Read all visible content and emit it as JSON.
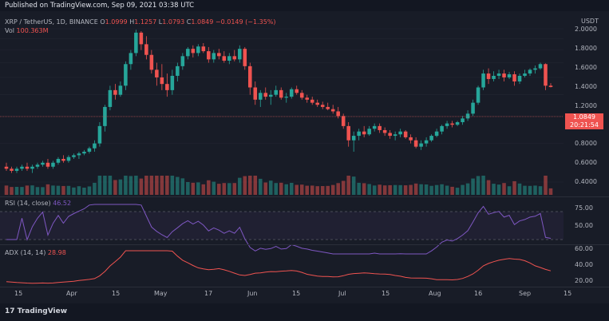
{
  "header": {
    "published": "Published on TradingView.com, Sep 09, 2021 03:38 UTC"
  },
  "legend": {
    "symbol": "XRP / TetherUS, 1D, BINANCE",
    "o_label": "O",
    "o": "1.0999",
    "h_label": "H",
    "h": "1.1257",
    "l_label": "L",
    "l": "1.0793",
    "c_label": "C",
    "c": "1.0849",
    "change": "−0.0149 (−1.35%)",
    "vol_label": "Vol",
    "vol": "100.363M"
  },
  "price_axis": {
    "currency": "USDT",
    "ticks": [
      "2.0000",
      "1.8000",
      "1.6000",
      "1.4000",
      "1.2000",
      "0.8000",
      "0.6000",
      "0.4000"
    ],
    "last_price": "1.0849",
    "countdown": "20:21:54"
  },
  "rsi": {
    "label": "RSI (14, close)",
    "value": "46.52",
    "ticks": [
      "75.00",
      "50.00"
    ]
  },
  "adx": {
    "label": "ADX (14, 14)",
    "value": "28.98",
    "ticks": [
      "60.00",
      "40.00",
      "20.00"
    ]
  },
  "time_axis": [
    "15",
    "Apr",
    "15",
    "May",
    "17",
    "Jun",
    "15",
    "Jul",
    "15",
    "Aug",
    "16",
    "Sep",
    "15"
  ],
  "footer": {
    "brand": "TradingView"
  },
  "colors": {
    "up": "#26a69a",
    "down": "#ef5350",
    "rsi": "#7e57c2",
    "adx": "#ef5350",
    "bg": "#181c27"
  },
  "chart_data": {
    "type": "candlestick",
    "symbol": "XRP / TetherUS",
    "ylim": [
      0.3,
      2.05
    ],
    "candles": [
      [
        0.47,
        0.49,
        0.45,
        0.46
      ],
      [
        0.46,
        0.47,
        0.44,
        0.45
      ],
      [
        0.45,
        0.47,
        0.44,
        0.46
      ],
      [
        0.46,
        0.48,
        0.45,
        0.47
      ],
      [
        0.47,
        0.49,
        0.45,
        0.46
      ],
      [
        0.46,
        0.48,
        0.44,
        0.47
      ],
      [
        0.47,
        0.49,
        0.46,
        0.48
      ],
      [
        0.48,
        0.5,
        0.47,
        0.49
      ],
      [
        0.49,
        0.51,
        0.46,
        0.47
      ],
      [
        0.47,
        0.5,
        0.46,
        0.49
      ],
      [
        0.49,
        0.52,
        0.48,
        0.51
      ],
      [
        0.51,
        0.53,
        0.49,
        0.5
      ],
      [
        0.5,
        0.53,
        0.49,
        0.52
      ],
      [
        0.52,
        0.54,
        0.51,
        0.53
      ],
      [
        0.53,
        0.55,
        0.51,
        0.54
      ],
      [
        0.54,
        0.56,
        0.53,
        0.55
      ],
      [
        0.55,
        0.58,
        0.54,
        0.57
      ],
      [
        0.57,
        0.62,
        0.55,
        0.6
      ],
      [
        0.6,
        0.75,
        0.58,
        0.72
      ],
      [
        0.72,
        0.9,
        0.68,
        0.88
      ],
      [
        0.88,
        1.1,
        0.85,
        1.05
      ],
      [
        1.05,
        1.12,
        0.95,
        1.0
      ],
      [
        1.0,
        1.15,
        0.98,
        1.1
      ],
      [
        1.1,
        1.42,
        1.05,
        1.38
      ],
      [
        1.38,
        1.6,
        1.3,
        1.55
      ],
      [
        1.55,
        1.98,
        1.5,
        1.92
      ],
      [
        1.92,
        1.95,
        1.6,
        1.7
      ],
      [
        1.7,
        1.85,
        1.45,
        1.52
      ],
      [
        1.52,
        1.6,
        1.25,
        1.3
      ],
      [
        1.3,
        1.4,
        1.1,
        1.2
      ],
      [
        1.2,
        1.38,
        1.05,
        1.12
      ],
      [
        1.12,
        1.25,
        0.98,
        1.05
      ],
      [
        1.05,
        1.3,
        1.0,
        1.22
      ],
      [
        1.22,
        1.4,
        1.15,
        1.35
      ],
      [
        1.35,
        1.55,
        1.3,
        1.5
      ],
      [
        1.5,
        1.65,
        1.45,
        1.62
      ],
      [
        1.62,
        1.68,
        1.48,
        1.55
      ],
      [
        1.55,
        1.7,
        1.5,
        1.66
      ],
      [
        1.66,
        1.72,
        1.55,
        1.58
      ],
      [
        1.58,
        1.65,
        1.4,
        1.45
      ],
      [
        1.45,
        1.6,
        1.4,
        1.55
      ],
      [
        1.55,
        1.62,
        1.45,
        1.5
      ],
      [
        1.5,
        1.58,
        1.4,
        1.43
      ],
      [
        1.43,
        1.55,
        1.38,
        1.5
      ],
      [
        1.5,
        1.6,
        1.42,
        1.45
      ],
      [
        1.45,
        1.68,
        1.4,
        1.62
      ],
      [
        1.62,
        1.65,
        1.3,
        1.35
      ],
      [
        1.35,
        1.4,
        1.0,
        1.08
      ],
      [
        1.08,
        1.15,
        0.9,
        0.95
      ],
      [
        0.95,
        1.05,
        0.88,
        1.02
      ],
      [
        1.02,
        1.08,
        0.95,
        0.98
      ],
      [
        0.98,
        1.05,
        0.9,
        1.0
      ],
      [
        1.0,
        1.1,
        0.98,
        1.05
      ],
      [
        1.05,
        1.08,
        0.95,
        0.97
      ],
      [
        0.97,
        1.02,
        0.92,
        0.98
      ],
      [
        0.98,
        1.08,
        0.96,
        1.06
      ],
      [
        1.06,
        1.1,
        1.0,
        1.02
      ],
      [
        1.02,
        1.05,
        0.95,
        0.97
      ],
      [
        0.97,
        1.0,
        0.92,
        0.95
      ],
      [
        0.95,
        0.98,
        0.9,
        0.92
      ],
      [
        0.92,
        0.95,
        0.88,
        0.9
      ],
      [
        0.9,
        0.93,
        0.86,
        0.88
      ],
      [
        0.88,
        0.92,
        0.85,
        0.86
      ],
      [
        0.86,
        0.9,
        0.82,
        0.84
      ],
      [
        0.84,
        0.88,
        0.78,
        0.8
      ],
      [
        0.8,
        0.82,
        0.7,
        0.72
      ],
      [
        0.72,
        0.75,
        0.58,
        0.62
      ],
      [
        0.62,
        0.68,
        0.55,
        0.65
      ],
      [
        0.65,
        0.7,
        0.62,
        0.68
      ],
      [
        0.68,
        0.72,
        0.64,
        0.66
      ],
      [
        0.66,
        0.72,
        0.65,
        0.7
      ],
      [
        0.7,
        0.74,
        0.68,
        0.72
      ],
      [
        0.72,
        0.74,
        0.67,
        0.69
      ],
      [
        0.69,
        0.71,
        0.65,
        0.67
      ],
      [
        0.67,
        0.69,
        0.63,
        0.65
      ],
      [
        0.65,
        0.68,
        0.62,
        0.66
      ],
      [
        0.66,
        0.7,
        0.64,
        0.68
      ],
      [
        0.68,
        0.69,
        0.63,
        0.64
      ],
      [
        0.64,
        0.66,
        0.6,
        0.62
      ],
      [
        0.62,
        0.64,
        0.57,
        0.58
      ],
      [
        0.58,
        0.62,
        0.56,
        0.6
      ],
      [
        0.6,
        0.64,
        0.58,
        0.62
      ],
      [
        0.62,
        0.66,
        0.61,
        0.65
      ],
      [
        0.65,
        0.7,
        0.64,
        0.68
      ],
      [
        0.68,
        0.73,
        0.66,
        0.72
      ],
      [
        0.72,
        0.76,
        0.7,
        0.74
      ],
      [
        0.74,
        0.76,
        0.71,
        0.73
      ],
      [
        0.73,
        0.76,
        0.72,
        0.75
      ],
      [
        0.75,
        0.8,
        0.73,
        0.78
      ],
      [
        0.78,
        0.85,
        0.76,
        0.82
      ],
      [
        0.82,
        0.95,
        0.8,
        0.92
      ],
      [
        0.92,
        1.1,
        0.9,
        1.08
      ],
      [
        1.08,
        1.3,
        1.05,
        1.25
      ],
      [
        1.25,
        1.32,
        1.12,
        1.18
      ],
      [
        1.18,
        1.28,
        1.15,
        1.22
      ],
      [
        1.22,
        1.3,
        1.18,
        1.25
      ],
      [
        1.25,
        1.3,
        1.15,
        1.2
      ],
      [
        1.2,
        1.27,
        1.18,
        1.24
      ],
      [
        1.24,
        1.28,
        1.1,
        1.15
      ],
      [
        1.15,
        1.25,
        1.12,
        1.22
      ],
      [
        1.22,
        1.3,
        1.2,
        1.25
      ],
      [
        1.25,
        1.32,
        1.22,
        1.3
      ],
      [
        1.3,
        1.36,
        1.25,
        1.32
      ],
      [
        1.32,
        1.4,
        1.3,
        1.38
      ],
      [
        1.38,
        1.39,
        1.05,
        1.1
      ],
      [
        1.1,
        1.13,
        1.08,
        1.085
      ]
    ]
  }
}
